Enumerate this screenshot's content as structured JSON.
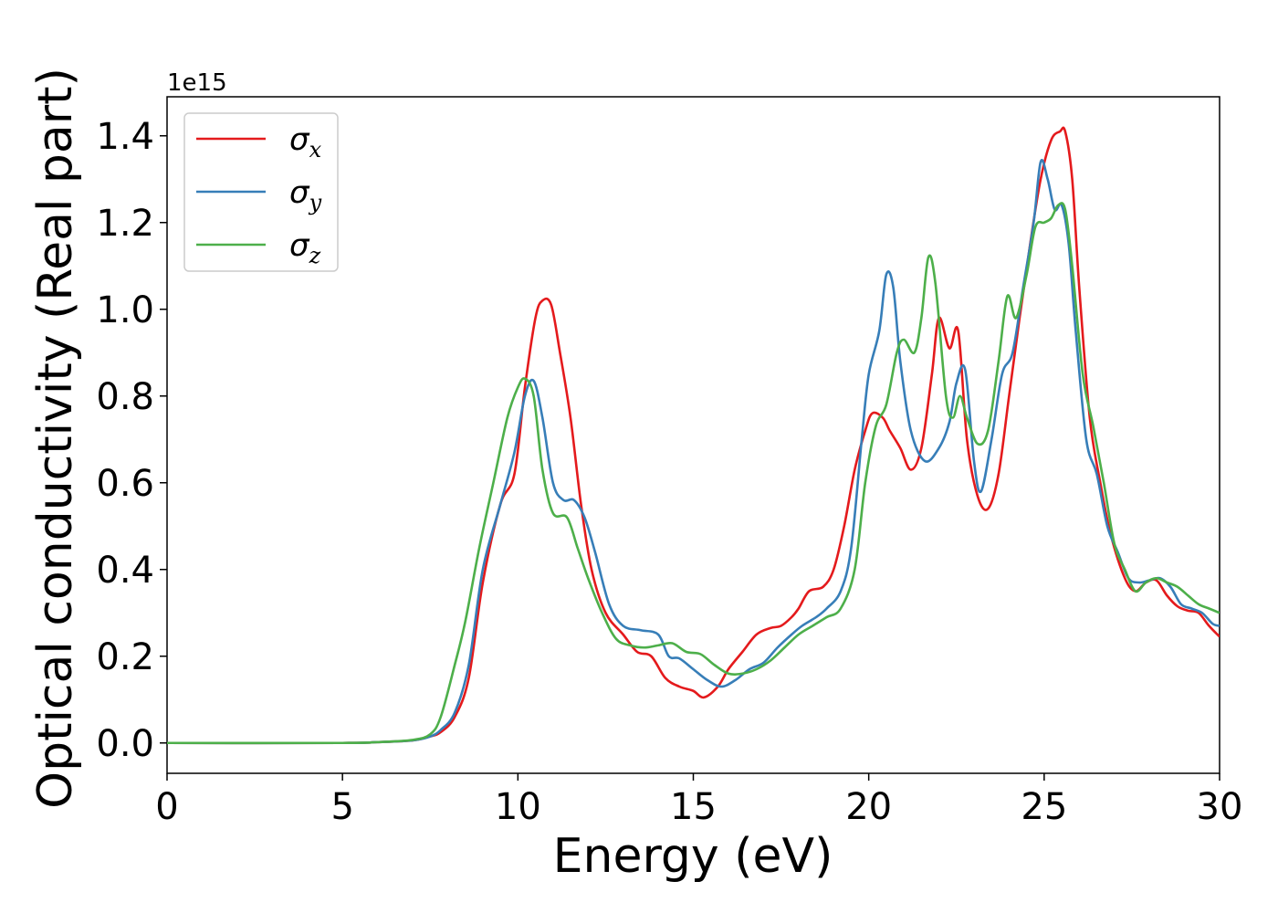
{
  "chart_data": {
    "type": "line",
    "xlabel": "Energy (eV)",
    "ylabel": "Optical conductivity (Real part)",
    "y_offset_label": "1e15",
    "xlim": [
      0,
      30
    ],
    "ylim": [
      -0.07,
      1.49
    ],
    "x_ticks": [
      0,
      5,
      10,
      15,
      20,
      25,
      30
    ],
    "x_tick_labels": [
      "0",
      "5",
      "10",
      "15",
      "20",
      "25",
      "30"
    ],
    "y_ticks": [
      0.0,
      0.2,
      0.4,
      0.6,
      0.8,
      1.0,
      1.2,
      1.4
    ],
    "y_tick_labels": [
      "0.0",
      "0.2",
      "0.4",
      "0.6",
      "0.8",
      "1.0",
      "1.2",
      "1.4"
    ],
    "grid": false,
    "legend_position": "upper-left",
    "series": [
      {
        "name": "σx",
        "symbol": "σ",
        "subscript": "x",
        "color": "#e41a1c",
        "x": [
          0,
          5,
          6,
          7,
          7.5,
          7.8,
          8.2,
          8.6,
          9.0,
          9.5,
          9.9,
          10.2,
          10.5,
          10.7,
          10.95,
          11.2,
          11.5,
          11.8,
          12.1,
          12.5,
          13.0,
          13.4,
          13.8,
          14.2,
          14.6,
          15.0,
          15.3,
          15.7,
          16.0,
          16.4,
          16.8,
          17.2,
          17.5,
          17.8,
          18.0,
          18.3,
          18.7,
          19.0,
          19.3,
          19.6,
          19.9,
          20.1,
          20.4,
          20.6,
          20.9,
          21.2,
          21.5,
          21.8,
          22.0,
          22.3,
          22.55,
          22.8,
          23.1,
          23.4,
          23.7,
          24.0,
          24.3,
          24.6,
          24.9,
          25.2,
          25.45,
          25.6,
          25.8,
          26.0,
          26.3,
          26.6,
          26.9,
          27.3,
          27.6,
          27.9,
          28.2,
          28.5,
          28.8,
          29.1,
          29.4,
          29.7,
          30.0
        ],
        "values": [
          0.0,
          0.0,
          0.002,
          0.006,
          0.015,
          0.025,
          0.06,
          0.15,
          0.37,
          0.55,
          0.62,
          0.82,
          0.98,
          1.02,
          1.01,
          0.9,
          0.75,
          0.55,
          0.4,
          0.3,
          0.25,
          0.21,
          0.2,
          0.15,
          0.13,
          0.12,
          0.105,
          0.13,
          0.17,
          0.21,
          0.25,
          0.265,
          0.27,
          0.29,
          0.31,
          0.35,
          0.36,
          0.4,
          0.5,
          0.63,
          0.72,
          0.76,
          0.75,
          0.72,
          0.68,
          0.63,
          0.68,
          0.85,
          0.98,
          0.91,
          0.95,
          0.7,
          0.57,
          0.54,
          0.62,
          0.8,
          0.98,
          1.15,
          1.3,
          1.39,
          1.41,
          1.41,
          1.3,
          1.05,
          0.75,
          0.6,
          0.48,
          0.38,
          0.35,
          0.37,
          0.375,
          0.34,
          0.315,
          0.305,
          0.3,
          0.27,
          0.245
        ]
      },
      {
        "name": "σy",
        "symbol": "σ",
        "subscript": "y",
        "color": "#377eb8",
        "x": [
          0,
          5,
          6,
          7,
          7.5,
          7.8,
          8.2,
          8.6,
          9.0,
          9.5,
          9.9,
          10.2,
          10.45,
          10.7,
          11.0,
          11.3,
          11.6,
          11.9,
          12.2,
          12.6,
          13.0,
          13.5,
          14.0,
          14.3,
          14.6,
          15.0,
          15.4,
          15.8,
          16.2,
          16.6,
          17.0,
          17.4,
          17.8,
          18.1,
          18.5,
          18.8,
          19.2,
          19.5,
          19.8,
          20.0,
          20.3,
          20.5,
          20.7,
          20.9,
          21.2,
          21.6,
          22.0,
          22.3,
          22.5,
          22.75,
          23.0,
          23.2,
          23.5,
          23.8,
          24.1,
          24.4,
          24.7,
          24.9,
          25.1,
          25.3,
          25.5,
          25.7,
          25.9,
          26.2,
          26.5,
          26.8,
          27.1,
          27.4,
          27.7,
          28.0,
          28.3,
          28.6,
          28.9,
          29.2,
          29.5,
          29.8,
          30.0
        ],
        "values": [
          0.0,
          0.0,
          0.002,
          0.006,
          0.015,
          0.03,
          0.07,
          0.18,
          0.4,
          0.55,
          0.67,
          0.8,
          0.835,
          0.75,
          0.6,
          0.56,
          0.56,
          0.52,
          0.44,
          0.32,
          0.27,
          0.26,
          0.25,
          0.2,
          0.195,
          0.17,
          0.145,
          0.13,
          0.145,
          0.17,
          0.185,
          0.22,
          0.25,
          0.27,
          0.29,
          0.31,
          0.35,
          0.45,
          0.7,
          0.85,
          0.95,
          1.08,
          1.05,
          0.88,
          0.72,
          0.65,
          0.68,
          0.74,
          0.83,
          0.86,
          0.65,
          0.58,
          0.7,
          0.85,
          0.9,
          1.05,
          1.2,
          1.34,
          1.3,
          1.23,
          1.24,
          1.15,
          0.95,
          0.7,
          0.62,
          0.5,
          0.44,
          0.38,
          0.37,
          0.375,
          0.38,
          0.36,
          0.32,
          0.31,
          0.3,
          0.275,
          0.27
        ]
      },
      {
        "name": "σz",
        "symbol": "σ",
        "subscript": "z",
        "color": "#4daf4a",
        "x": [
          0,
          5,
          6,
          7,
          7.5,
          7.8,
          8.2,
          8.5,
          8.9,
          9.3,
          9.7,
          10.0,
          10.2,
          10.45,
          10.7,
          11.0,
          11.4,
          11.7,
          12.0,
          12.4,
          12.8,
          13.2,
          13.6,
          14.0,
          14.4,
          14.8,
          15.2,
          15.6,
          16.0,
          16.4,
          16.8,
          17.2,
          17.6,
          18.0,
          18.4,
          18.8,
          19.2,
          19.6,
          19.9,
          20.2,
          20.5,
          20.8,
          21.0,
          21.3,
          21.5,
          21.7,
          21.9,
          22.2,
          22.4,
          22.6,
          22.8,
          23.1,
          23.4,
          23.7,
          23.95,
          24.2,
          24.5,
          24.75,
          25.0,
          25.2,
          25.4,
          25.6,
          25.8,
          26.1,
          26.4,
          26.7,
          27.0,
          27.3,
          27.6,
          27.9,
          28.2,
          28.5,
          28.8,
          29.1,
          29.4,
          29.7,
          30.0
        ],
        "values": [
          0.0,
          0.0,
          0.002,
          0.007,
          0.02,
          0.06,
          0.18,
          0.28,
          0.45,
          0.6,
          0.75,
          0.82,
          0.84,
          0.8,
          0.63,
          0.53,
          0.52,
          0.45,
          0.38,
          0.3,
          0.24,
          0.225,
          0.22,
          0.225,
          0.23,
          0.21,
          0.205,
          0.18,
          0.16,
          0.16,
          0.17,
          0.19,
          0.22,
          0.25,
          0.27,
          0.29,
          0.31,
          0.4,
          0.6,
          0.73,
          0.78,
          0.9,
          0.93,
          0.9,
          0.98,
          1.12,
          1.06,
          0.8,
          0.75,
          0.8,
          0.75,
          0.69,
          0.72,
          0.88,
          1.03,
          0.98,
          1.08,
          1.19,
          1.2,
          1.21,
          1.24,
          1.23,
          1.1,
          0.85,
          0.73,
          0.6,
          0.46,
          0.4,
          0.35,
          0.37,
          0.38,
          0.37,
          0.36,
          0.34,
          0.32,
          0.31,
          0.3
        ]
      }
    ]
  }
}
